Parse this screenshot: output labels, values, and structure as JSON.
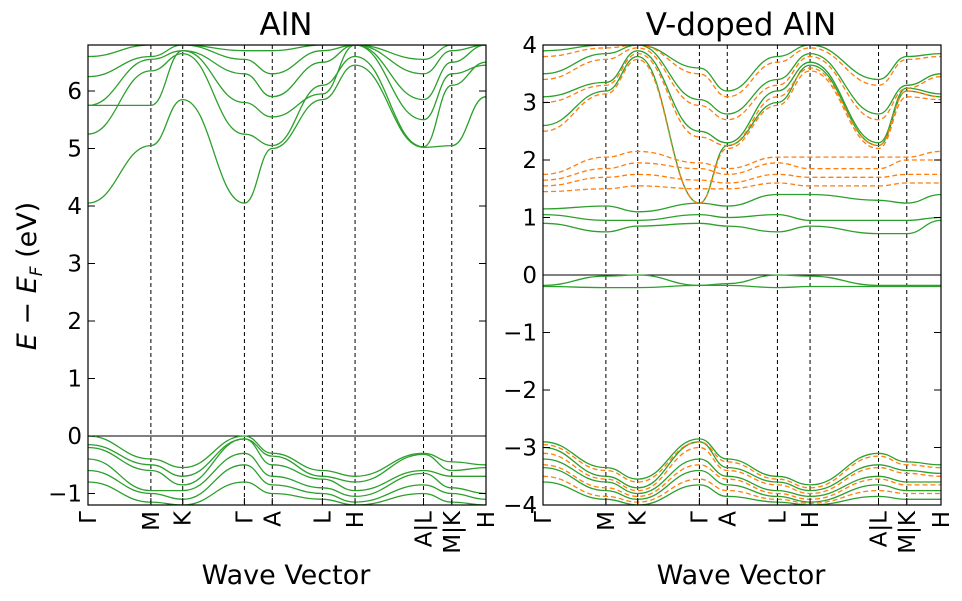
{
  "ylabel": "E − E_F (eV)",
  "ylabel_main": "E − E",
  "ylabel_sub": "F",
  "ylabel_unit": " (eV)",
  "chart_data": [
    {
      "type": "line",
      "title": "AlN",
      "xlabel": "Wave Vector",
      "ylim": [
        -1.2,
        6.8
      ],
      "yticks": [
        -1,
        0,
        1,
        2,
        3,
        4,
        5,
        6
      ],
      "kpath": [
        "Γ",
        "M",
        "K",
        "Γ",
        "A",
        "L",
        "H",
        "A|L",
        "M|K",
        "H"
      ],
      "kpos": [
        0,
        0.158,
        0.238,
        0.393,
        0.463,
        0.589,
        0.671,
        0.843,
        0.914,
        1.0
      ],
      "reference_line_y": 0,
      "band_color": "#2ca02c",
      "series": [
        {
          "values": [
            4.05,
            5.05,
            5.85,
            4.05,
            5.0,
            5.85,
            6.45,
            5.02,
            5.05,
            5.9
          ]
        },
        {
          "values": [
            5.25,
            6.35,
            6.65,
            5.25,
            5.05,
            6.1,
            6.6,
            5.03,
            6.1,
            6.5
          ]
        },
        {
          "values": [
            5.75,
            5.75,
            6.7,
            5.8,
            5.55,
            5.95,
            6.8,
            5.5,
            6.3,
            6.45
          ]
        },
        {
          "values": [
            5.75,
            6.55,
            6.7,
            6.3,
            5.9,
            6.5,
            6.8,
            5.85,
            6.5,
            6.8
          ]
        },
        {
          "values": [
            6.25,
            6.6,
            6.8,
            6.55,
            6.3,
            6.7,
            6.8,
            6.3,
            6.7,
            6.8
          ]
        },
        {
          "values": [
            6.6,
            6.8,
            6.8,
            6.7,
            6.7,
            6.8,
            6.8,
            6.55,
            6.8,
            6.8
          ]
        },
        {
          "values": [
            0.0,
            -0.4,
            -0.55,
            0.0,
            -0.3,
            -0.6,
            -0.7,
            -0.3,
            -0.45,
            -0.5
          ]
        },
        {
          "values": [
            -0.15,
            -0.5,
            -0.7,
            -0.05,
            -0.35,
            -0.7,
            -0.8,
            -0.32,
            -0.6,
            -0.55
          ]
        },
        {
          "values": [
            -0.2,
            -0.6,
            -0.85,
            -0.05,
            -0.5,
            -0.75,
            -0.95,
            -0.6,
            -0.7,
            -0.7
          ]
        },
        {
          "values": [
            -0.4,
            -0.95,
            -0.95,
            -0.3,
            -0.7,
            -0.9,
            -1.05,
            -0.65,
            -0.9,
            -1.0
          ]
        },
        {
          "values": [
            -0.6,
            -1.0,
            -1.1,
            -0.5,
            -0.85,
            -1.0,
            -1.15,
            -0.85,
            -1.0,
            -1.1
          ]
        },
        {
          "values": [
            -0.8,
            -1.15,
            -1.2,
            -0.8,
            -1.0,
            -1.1,
            -1.2,
            -1.0,
            -1.15,
            -1.2
          ]
        }
      ]
    },
    {
      "type": "line",
      "title": "V-doped AlN",
      "xlabel": "Wave Vector",
      "ylim": [
        -4,
        4
      ],
      "yticks": [
        -4,
        -3,
        -2,
        -1,
        0,
        1,
        2,
        3,
        4
      ],
      "kpath": [
        "Γ",
        "M",
        "K",
        "Γ",
        "A",
        "L",
        "H",
        "A|L",
        "M|K",
        "H"
      ],
      "kpos": [
        0,
        0.158,
        0.238,
        0.393,
        0.463,
        0.589,
        0.671,
        0.843,
        0.914,
        1.0
      ],
      "reference_line_y": 0,
      "spin_colors": [
        "#2ca02c",
        "#ff7f0e"
      ],
      "series": [
        {
          "spin": "up",
          "values": [
            1.15,
            1.2,
            1.1,
            1.25,
            1.2,
            1.4,
            1.4,
            1.3,
            1.25,
            1.4
          ]
        },
        {
          "spin": "up",
          "values": [
            1.05,
            0.95,
            0.95,
            1.05,
            1.0,
            1.05,
            0.95,
            0.95,
            0.95,
            1.0
          ]
        },
        {
          "spin": "up",
          "values": [
            0.9,
            0.75,
            0.85,
            0.9,
            0.85,
            0.75,
            0.85,
            0.72,
            0.72,
            0.95
          ]
        },
        {
          "spin": "up",
          "values": [
            -0.2,
            -0.22,
            -0.22,
            -0.18,
            -0.18,
            -0.22,
            -0.2,
            -0.2,
            -0.2,
            -0.2
          ]
        },
        {
          "spin": "up",
          "values": [
            -0.18,
            -0.02,
            0.0,
            -0.18,
            -0.15,
            0.0,
            -0.02,
            -0.18,
            -0.18,
            -0.18
          ]
        },
        {
          "spin": "up",
          "values": [
            2.6,
            3.2,
            3.8,
            1.25,
            2.25,
            3.0,
            3.65,
            2.25,
            3.2,
            3.1
          ]
        },
        {
          "spin": "up",
          "values": [
            3.1,
            3.35,
            3.9,
            2.5,
            2.3,
            3.2,
            3.7,
            2.3,
            3.25,
            3.15
          ]
        },
        {
          "spin": "up",
          "values": [
            3.5,
            3.85,
            4.0,
            3.05,
            2.8,
            3.4,
            3.85,
            2.8,
            3.3,
            3.5
          ]
        },
        {
          "spin": "up",
          "values": [
            3.9,
            4.0,
            4.0,
            3.6,
            3.2,
            3.8,
            4.0,
            3.4,
            3.8,
            3.85
          ]
        },
        {
          "spin": "up",
          "values": [
            -2.9,
            -3.35,
            -3.55,
            -2.85,
            -3.2,
            -3.5,
            -3.65,
            -3.1,
            -3.25,
            -3.3
          ]
        },
        {
          "spin": "up",
          "values": [
            -3.0,
            -3.5,
            -3.7,
            -2.9,
            -3.35,
            -3.6,
            -3.75,
            -3.3,
            -3.4,
            -3.45
          ]
        },
        {
          "spin": "up",
          "values": [
            -3.2,
            -3.6,
            -3.8,
            -3.2,
            -3.5,
            -3.75,
            -3.85,
            -3.5,
            -3.6,
            -3.6
          ]
        },
        {
          "spin": "up",
          "values": [
            -3.35,
            -3.75,
            -3.9,
            -3.4,
            -3.65,
            -3.85,
            -3.95,
            -3.65,
            -3.75,
            -3.75
          ]
        },
        {
          "spin": "up",
          "values": [
            -3.6,
            -3.9,
            -4.0,
            -3.65,
            -3.85,
            -3.95,
            -4.0,
            -3.85,
            -3.9,
            -3.9
          ]
        },
        {
          "spin": "down",
          "values": [
            1.75,
            2.05,
            2.15,
            1.95,
            1.85,
            2.05,
            2.05,
            2.05,
            2.05,
            2.15
          ]
        },
        {
          "spin": "down",
          "values": [
            1.65,
            1.85,
            1.95,
            1.85,
            1.75,
            1.95,
            1.85,
            1.85,
            2.0,
            2.0
          ]
        },
        {
          "spin": "down",
          "values": [
            1.55,
            1.7,
            1.75,
            1.65,
            1.6,
            1.75,
            1.7,
            1.7,
            1.75,
            1.75
          ]
        },
        {
          "spin": "down",
          "values": [
            1.45,
            1.5,
            1.55,
            1.5,
            1.5,
            1.6,
            1.55,
            1.55,
            1.6,
            1.6
          ]
        },
        {
          "spin": "down",
          "values": [
            2.5,
            3.15,
            3.75,
            1.25,
            2.2,
            2.95,
            3.55,
            2.2,
            3.1,
            3.05
          ]
        },
        {
          "spin": "down",
          "values": [
            3.0,
            3.3,
            3.85,
            2.4,
            2.25,
            3.1,
            3.6,
            2.25,
            3.2,
            3.1
          ]
        },
        {
          "spin": "down",
          "values": [
            3.4,
            3.75,
            3.95,
            2.95,
            2.7,
            3.3,
            3.8,
            2.7,
            3.25,
            3.45
          ]
        },
        {
          "spin": "down",
          "values": [
            3.8,
            3.95,
            4.0,
            3.5,
            3.1,
            3.7,
            3.95,
            3.3,
            3.75,
            3.8
          ]
        },
        {
          "spin": "down",
          "values": [
            -2.95,
            -3.4,
            -3.6,
            -2.9,
            -3.25,
            -3.55,
            -3.7,
            -3.15,
            -3.3,
            -3.35
          ]
        },
        {
          "spin": "down",
          "values": [
            -3.1,
            -3.55,
            -3.75,
            -3.0,
            -3.4,
            -3.65,
            -3.8,
            -3.35,
            -3.45,
            -3.5
          ]
        },
        {
          "spin": "down",
          "values": [
            -3.3,
            -3.7,
            -3.85,
            -3.3,
            -3.55,
            -3.8,
            -3.9,
            -3.55,
            -3.65,
            -3.65
          ]
        },
        {
          "spin": "down",
          "values": [
            -3.5,
            -3.85,
            -3.95,
            -3.55,
            -3.75,
            -3.9,
            -3.97,
            -3.75,
            -3.8,
            -3.8
          ]
        }
      ]
    }
  ]
}
